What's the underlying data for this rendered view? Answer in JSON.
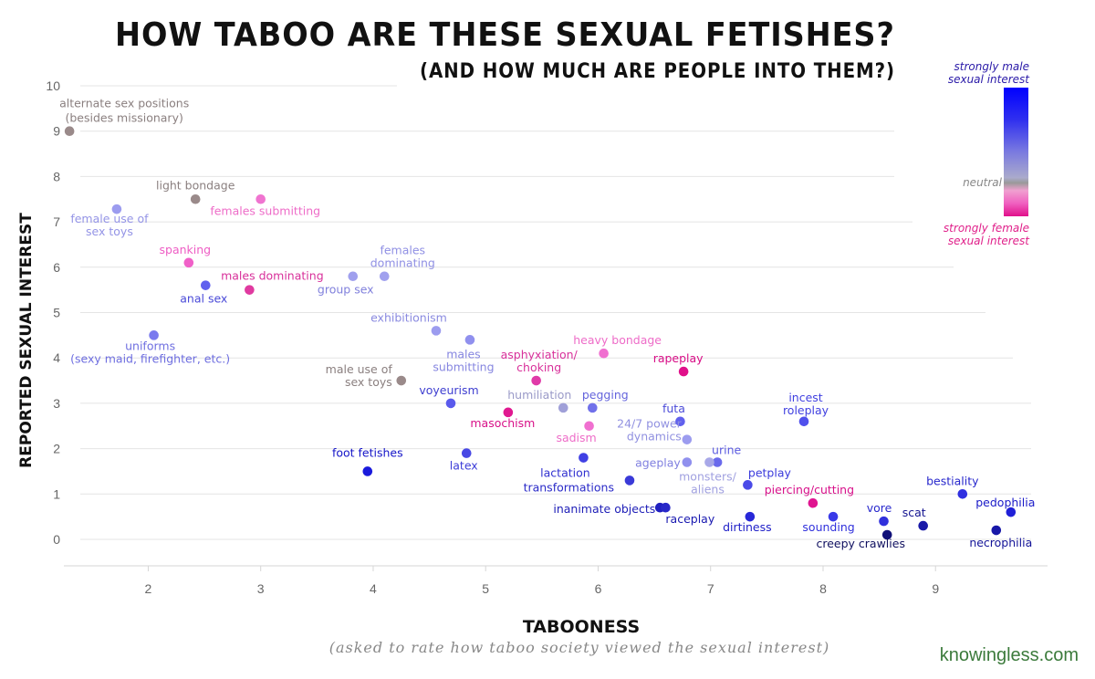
{
  "title": "HOW TABOO ARE THESE SEXUAL FETISHES?",
  "subtitle": "(AND HOW MUCH ARE PEOPLE INTO THEM?)",
  "credit": "knowingless.com",
  "legend": {
    "male": "strongly male sexual interest",
    "neutral": "neutral",
    "female": "strongly female sexual interest"
  },
  "chart_data": {
    "type": "scatter",
    "title": "HOW TABOO ARE THESE SEXUAL FETISHES? (AND HOW MUCH ARE PEOPLE INTO THEM?)",
    "xlabel": "TABOONESS",
    "xlabel_sub": "(asked to rate how taboo society viewed the sexual interest)",
    "ylabel": "REPORTED SEXUAL INTEREST",
    "xlim": [
      1.25,
      9.85
    ],
    "ylim": [
      -0.6,
      10
    ],
    "xticks": [
      2,
      3,
      4,
      5,
      6,
      7,
      8,
      9
    ],
    "yticks": [
      0,
      1,
      2,
      3,
      4,
      5,
      6,
      7,
      8,
      9,
      10
    ],
    "grid": "horizontal",
    "color_scale": "gender lean of interest: strongly male (blue) to neutral (gray) to strongly female (pink)",
    "points": [
      {
        "label": "alternate sex positions (besides missionary)",
        "lines": [
          "alternate sex positions",
          "(besides missionary)"
        ],
        "x": 1.3,
        "y": 9.0,
        "color": "#9a8a8a",
        "label_color": "#8a7f7f",
        "anchor": "middle",
        "dx": 60,
        "dy": [
          -26,
          -10
        ]
      },
      {
        "label": "light bondage",
        "lines": [
          "light bondage"
        ],
        "x": 2.42,
        "y": 7.5,
        "color": "#9a8a8a",
        "label_color": "#8a7f7f",
        "anchor": "middle",
        "dx": 0,
        "dy": [
          -11
        ]
      },
      {
        "label": "females submitting",
        "lines": [
          "females submitting"
        ],
        "x": 3.0,
        "y": 7.5,
        "color": "#f074d0",
        "label_color": "#ee6cc8",
        "anchor": "middle",
        "dx": 5,
        "dy": [
          17
        ]
      },
      {
        "label": "female use of sex toys",
        "lines": [
          "female use of",
          "sex toys"
        ],
        "x": 1.72,
        "y": 7.28,
        "color": "#9c9cef",
        "label_color": "#9494e6",
        "anchor": "middle",
        "dx": -8,
        "dy": [
          15,
          29
        ]
      },
      {
        "label": "spanking",
        "lines": [
          "spanking"
        ],
        "x": 2.36,
        "y": 6.1,
        "color": "#f060c8",
        "label_color": "#ee5cc4",
        "anchor": "middle",
        "dx": -4,
        "dy": [
          -10
        ]
      },
      {
        "label": "females dominating",
        "lines": [
          "females",
          "dominating"
        ],
        "x": 4.1,
        "y": 5.8,
        "color": "#a0a0ee",
        "label_color": "#9090e4",
        "anchor": "middle",
        "dx": 20,
        "dy": [
          -24,
          -10
        ]
      },
      {
        "label": "group sex",
        "lines": [
          "group sex"
        ],
        "x": 3.82,
        "y": 5.8,
        "color": "#a0a0ee",
        "label_color": "#8080dc",
        "anchor": "middle",
        "dx": -8,
        "dy": [
          19
        ]
      },
      {
        "label": "males dominating",
        "lines": [
          "males dominating"
        ],
        "x": 2.9,
        "y": 5.5,
        "color": "#e03aa0",
        "label_color": "#d8309a",
        "anchor": "middle",
        "dx": 25,
        "dy": [
          -11
        ]
      },
      {
        "label": "anal sex",
        "lines": [
          "anal sex"
        ],
        "x": 2.51,
        "y": 5.6,
        "color": "#6060ee",
        "label_color": "#4a4ad8",
        "anchor": "middle",
        "dx": -2,
        "dy": [
          19
        ]
      },
      {
        "label": "uniforms (sexy maid, firefighter, etc.)",
        "lines": [
          "uniforms",
          "(sexy maid, firefighter, etc.)"
        ],
        "x": 2.05,
        "y": 4.5,
        "color": "#7a7aee",
        "label_color": "#6e6ee0",
        "anchor": "middle",
        "dx": -4,
        "dy": [
          16,
          30
        ]
      },
      {
        "label": "exhibitionism",
        "lines": [
          "exhibitionism"
        ],
        "x": 4.56,
        "y": 4.6,
        "color": "#9c9cef",
        "label_color": "#8a8ae0",
        "anchor": "middle",
        "dx": -30,
        "dy": [
          -10
        ]
      },
      {
        "label": "males submitting",
        "lines": [
          "males",
          "submitting"
        ],
        "x": 4.86,
        "y": 4.4,
        "color": "#9090ee",
        "label_color": "#8686e0",
        "anchor": "middle",
        "dx": -7,
        "dy": [
          20,
          34
        ]
      },
      {
        "label": "heavy bondage",
        "lines": [
          "heavy bondage"
        ],
        "x": 6.05,
        "y": 4.1,
        "color": "#f070d0",
        "label_color": "#ee6cc8",
        "anchor": "middle",
        "dx": 15,
        "dy": [
          -10
        ]
      },
      {
        "label": "asphyxiation/ choking",
        "lines": [
          "asphyxiation/",
          "choking"
        ],
        "x": 5.45,
        "y": 3.5,
        "color": "#e03aa8",
        "label_color": "#d8309a",
        "anchor": "middle",
        "dx": 3,
        "dy": [
          -24,
          -10
        ]
      },
      {
        "label": "rapeplay",
        "lines": [
          "rapeplay"
        ],
        "x": 6.76,
        "y": 3.7,
        "color": "#e0108a",
        "label_color": "#d80c86",
        "anchor": "middle",
        "dx": -6,
        "dy": [
          -10
        ]
      },
      {
        "label": "male use of sex toys",
        "lines": [
          "male use of",
          "sex toys"
        ],
        "x": 4.25,
        "y": 3.5,
        "color": "#9a8a8a",
        "label_color": "#8a7f7f",
        "anchor": "end",
        "dx": -10,
        "dy": [
          -8,
          6
        ]
      },
      {
        "label": "voyeurism",
        "lines": [
          "voyeurism"
        ],
        "x": 4.69,
        "y": 3.0,
        "color": "#5a5aec",
        "label_color": "#3e3ed0",
        "anchor": "middle",
        "dx": -2,
        "dy": [
          -10
        ]
      },
      {
        "label": "humiliation",
        "lines": [
          "humiliation"
        ],
        "x": 5.69,
        "y": 2.9,
        "color": "#a0a0d8",
        "label_color": "#9a9ac8",
        "anchor": "middle",
        "dx": -26,
        "dy": [
          -10
        ]
      },
      {
        "label": "pegging",
        "lines": [
          "pegging"
        ],
        "x": 5.95,
        "y": 2.9,
        "color": "#7070ea",
        "label_color": "#6464dc",
        "anchor": "middle",
        "dx": 14,
        "dy": [
          -10
        ]
      },
      {
        "label": "masochism",
        "lines": [
          "masochism"
        ],
        "x": 5.2,
        "y": 2.8,
        "color": "#e01890",
        "label_color": "#d81088",
        "anchor": "middle",
        "dx": -6,
        "dy": [
          16
        ]
      },
      {
        "label": "sadism",
        "lines": [
          "sadism"
        ],
        "x": 5.92,
        "y": 2.5,
        "color": "#f070d0",
        "label_color": "#ee6cc8",
        "anchor": "middle",
        "dx": -14,
        "dy": [
          17
        ]
      },
      {
        "label": "futa",
        "lines": [
          "futa"
        ],
        "x": 6.73,
        "y": 2.6,
        "color": "#6060ee",
        "label_color": "#4a4ad8",
        "anchor": "middle",
        "dx": -7,
        "dy": [
          -10
        ]
      },
      {
        "label": "24/7 power dynamics",
        "lines": [
          "24/7 power",
          "dynamics"
        ],
        "x": 6.79,
        "y": 2.2,
        "color": "#9c9cef",
        "label_color": "#9090e0",
        "anchor": "end",
        "dx": -6,
        "dy": [
          -13,
          1
        ]
      },
      {
        "label": "incest roleplay",
        "lines": [
          "incest",
          "roleplay"
        ],
        "x": 7.83,
        "y": 2.6,
        "color": "#5050ec",
        "label_color": "#4040e0",
        "anchor": "middle",
        "dx": 2,
        "dy": [
          -22,
          -8
        ]
      },
      {
        "label": "foot fetishes",
        "lines": [
          "foot fetishes"
        ],
        "x": 3.95,
        "y": 1.5,
        "color": "#1a1adc",
        "label_color": "#1414c8",
        "anchor": "middle",
        "dx": 0,
        "dy": [
          -16
        ]
      },
      {
        "label": "latex",
        "lines": [
          "latex"
        ],
        "x": 4.83,
        "y": 1.9,
        "color": "#4848e4",
        "label_color": "#3c3cd8",
        "anchor": "middle",
        "dx": -3,
        "dy": [
          18
        ]
      },
      {
        "label": "lactation",
        "lines": [
          "lactation"
        ],
        "x": 5.87,
        "y": 1.8,
        "color": "#4040e4",
        "label_color": "#3030d0",
        "anchor": "middle",
        "dx": -20,
        "dy": [
          21
        ]
      },
      {
        "label": "ageplay",
        "lines": [
          "ageplay"
        ],
        "x": 6.79,
        "y": 1.7,
        "color": "#9090ee",
        "label_color": "#8080e0",
        "anchor": "end",
        "dx": -7,
        "dy": [
          5
        ]
      },
      {
        "label": "urine",
        "lines": [
          "urine"
        ],
        "x": 7.06,
        "y": 1.7,
        "color": "#6a6aec",
        "label_color": "#5a5ae0",
        "anchor": "middle",
        "dx": 10,
        "dy": [
          -9
        ]
      },
      {
        "label": "monsters/ aliens",
        "lines": [
          "monsters/",
          "aliens"
        ],
        "x": 6.99,
        "y": 1.7,
        "color": "#a8a8e8",
        "label_color": "#a0a0e0",
        "anchor": "middle",
        "dx": -2,
        "dy": [
          20,
          34
        ]
      },
      {
        "label": "petplay",
        "lines": [
          "petplay"
        ],
        "x": 7.33,
        "y": 1.2,
        "color": "#4a4ae8",
        "label_color": "#3a3adc",
        "anchor": "middle",
        "dx": 24,
        "dy": [
          -9
        ]
      },
      {
        "label": "transformations",
        "lines": [
          "transformations"
        ],
        "x": 6.28,
        "y": 1.3,
        "color": "#3a3ad8",
        "label_color": "#2a2ac8",
        "anchor": "end",
        "dx": -17,
        "dy": [
          12
        ]
      },
      {
        "label": "piercing/cutting",
        "lines": [
          "piercing/cutting"
        ],
        "x": 7.91,
        "y": 0.8,
        "color": "#e01490",
        "label_color": "#d8108a",
        "anchor": "middle",
        "dx": -4,
        "dy": [
          -10
        ]
      },
      {
        "label": "inanimate objects",
        "lines": [
          "inanimate objects"
        ],
        "x": 6.55,
        "y": 0.7,
        "color": "#2020c0",
        "label_color": "#2020b8",
        "anchor": "end",
        "dx": -5,
        "dy": [
          6
        ]
      },
      {
        "label": "raceplay",
        "lines": [
          "raceplay"
        ],
        "x": 6.6,
        "y": 0.7,
        "color": "#2828c8",
        "label_color": "#1818b0",
        "anchor": "start",
        "dx": 0,
        "dy": [
          17
        ]
      },
      {
        "label": "dirtiness",
        "lines": [
          "dirtiness"
        ],
        "x": 7.35,
        "y": 0.5,
        "color": "#2828d8",
        "label_color": "#2020c8",
        "anchor": "middle",
        "dx": -3,
        "dy": [
          16
        ]
      },
      {
        "label": "sounding",
        "lines": [
          "sounding"
        ],
        "x": 8.09,
        "y": 0.5,
        "color": "#3a3ae8",
        "label_color": "#3030dc",
        "anchor": "middle",
        "dx": -5,
        "dy": [
          16
        ]
      },
      {
        "label": "vore",
        "lines": [
          "vore"
        ],
        "x": 8.54,
        "y": 0.4,
        "color": "#3030dc",
        "label_color": "#2828cc",
        "anchor": "middle",
        "dx": -5,
        "dy": [
          -10
        ]
      },
      {
        "label": "scat",
        "lines": [
          "scat"
        ],
        "x": 8.89,
        "y": 0.3,
        "color": "#1a1aa8",
        "label_color": "#141490",
        "anchor": "middle",
        "dx": -10,
        "dy": [
          -10
        ]
      },
      {
        "label": "creepy crawlies",
        "lines": [
          "creepy crawlies"
        ],
        "x": 8.57,
        "y": 0.1,
        "color": "#101078",
        "label_color": "#101060",
        "anchor": "middle",
        "dx": -29,
        "dy": [
          14
        ]
      },
      {
        "label": "bestiality",
        "lines": [
          "bestiality"
        ],
        "x": 9.24,
        "y": 1.0,
        "color": "#3030e0",
        "label_color": "#2626cc",
        "anchor": "middle",
        "dx": -11,
        "dy": [
          -10
        ]
      },
      {
        "label": "pedophilia",
        "lines": [
          "pedophilia"
        ],
        "x": 9.67,
        "y": 0.6,
        "color": "#2020d8",
        "label_color": "#1a1ac8",
        "anchor": "middle",
        "dx": -6,
        "dy": [
          -6
        ]
      },
      {
        "label": "necrophilia",
        "lines": [
          "necrophilia"
        ],
        "x": 9.54,
        "y": 0.2,
        "color": "#1818a8",
        "label_color": "#141498",
        "anchor": "middle",
        "dx": 5,
        "dy": [
          18
        ]
      }
    ]
  }
}
